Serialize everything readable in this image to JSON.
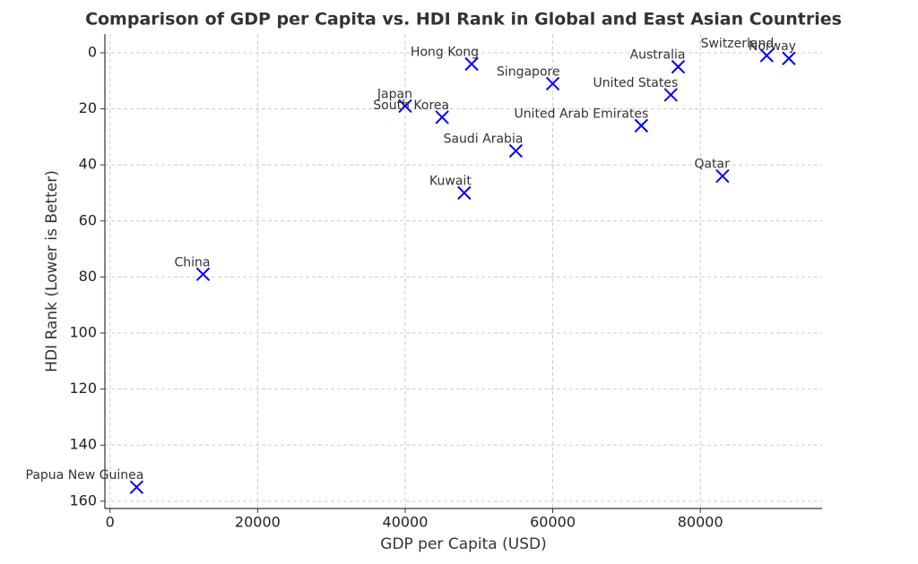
{
  "chart_data": {
    "type": "scatter",
    "title": "Comparison of GDP per Capita vs. HDI Rank in Global and East Asian Countries",
    "xlabel": "GDP per Capita (USD)",
    "ylabel": "HDI Rank (Lower is Better)",
    "labels": [
      "Hong Kong",
      "Singapore",
      "Australia",
      "Switzerland",
      "Norway",
      "Japan",
      "South Korea",
      "United States",
      "United Arab Emirates",
      "Saudi Arabia",
      "Qatar",
      "Kuwait",
      "China",
      "Papua New Guinea"
    ],
    "x": [
      49000,
      60000,
      77000,
      89000,
      92000,
      40000,
      45000,
      76000,
      72000,
      55000,
      83000,
      48000,
      12600,
      3600
    ],
    "values": [
      4,
      11,
      5,
      1,
      2,
      19,
      23,
      15,
      26,
      35,
      44,
      50,
      79,
      155
    ],
    "color": "#0000ff",
    "marker": "x",
    "xlim": [
      -700,
      96500
    ],
    "ylim": [
      -6.7,
      162.6
    ],
    "y_inverted": true,
    "xticks": [
      0,
      20000,
      40000,
      60000,
      80000
    ],
    "yticks": [
      0,
      20,
      40,
      60,
      80,
      100,
      120,
      140,
      160
    ],
    "grid": true
  }
}
